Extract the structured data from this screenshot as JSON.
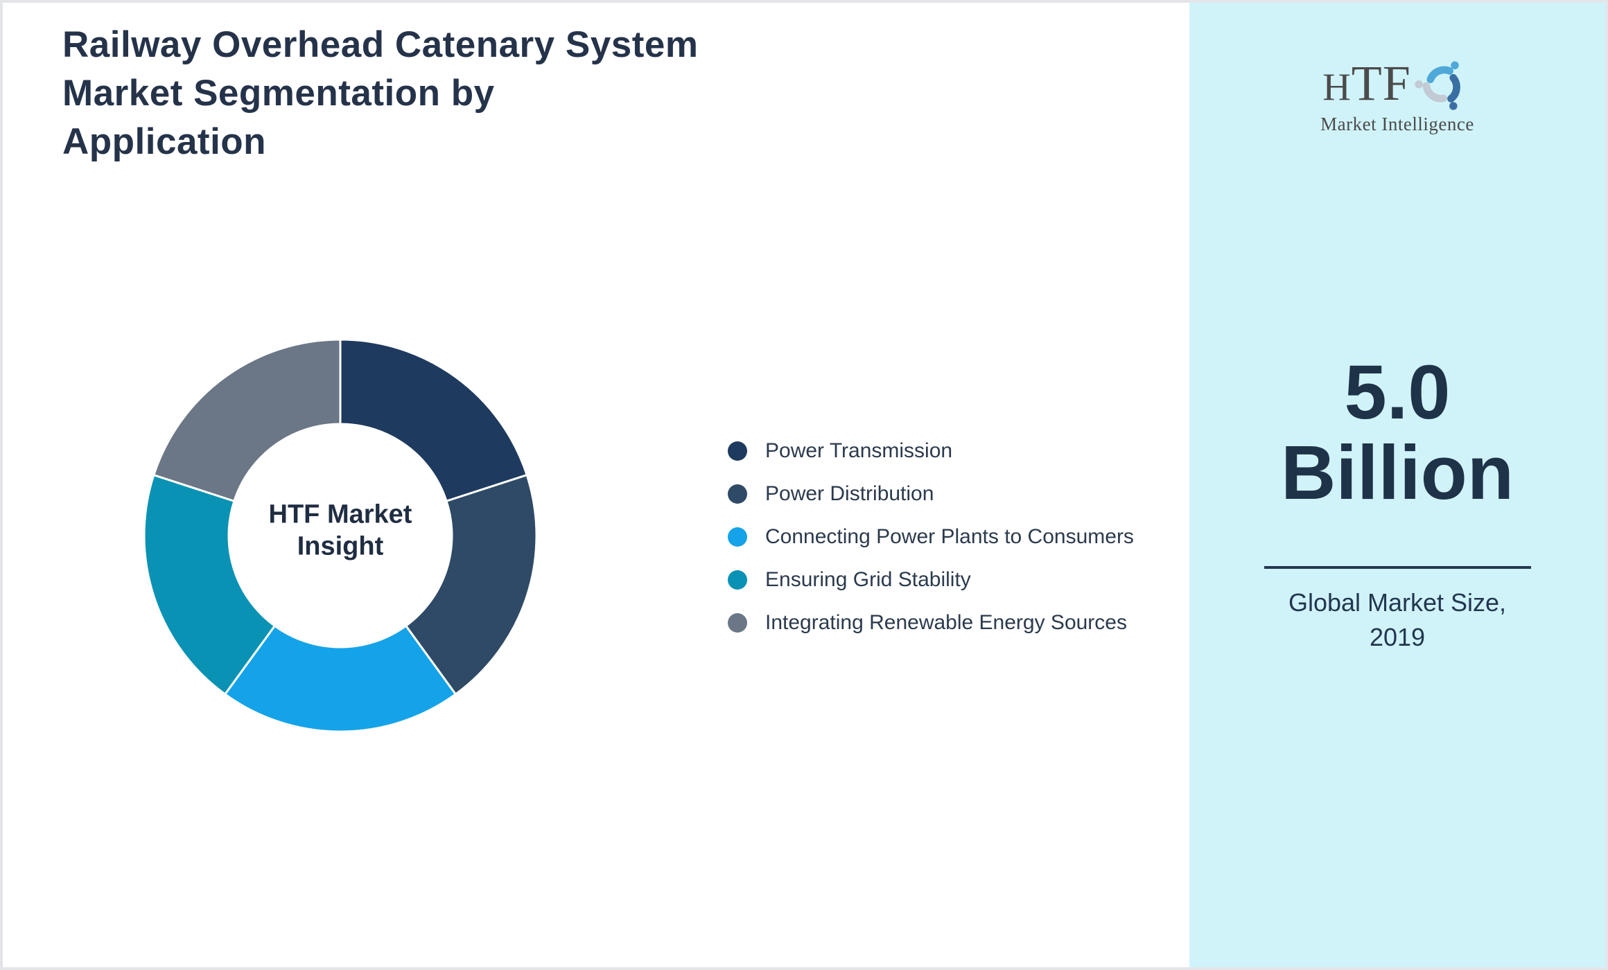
{
  "title": "Railway Overhead Catenary System Market Segmentation by Application",
  "chart_data": {
    "type": "pie",
    "donut": true,
    "labels": [
      "Power Transmission",
      "Power Distribution",
      "Connecting Power Plants to Consumers",
      "Ensuring Grid Stability",
      "Integrating Renewable Energy Sources"
    ],
    "values": [
      20,
      20,
      20,
      20,
      20
    ],
    "colors": [
      "#1e3a5f",
      "#2f4a66",
      "#14a3e8",
      "#0992b4",
      "#6b7686"
    ],
    "center_label": "HTF Market Insight",
    "legend_position": "right",
    "slice_border_color": "#ffffff"
  },
  "panel": {
    "background": "#d0f3fa",
    "stat_value": "5.0 Billion",
    "stat_caption": "Global Market Size, 2019"
  },
  "logo": {
    "text": "HTF",
    "subtitle": "Market Intelligence",
    "icon_colors": [
      "#4fa8d8",
      "#3a6fa3",
      "#c2cad3"
    ]
  }
}
